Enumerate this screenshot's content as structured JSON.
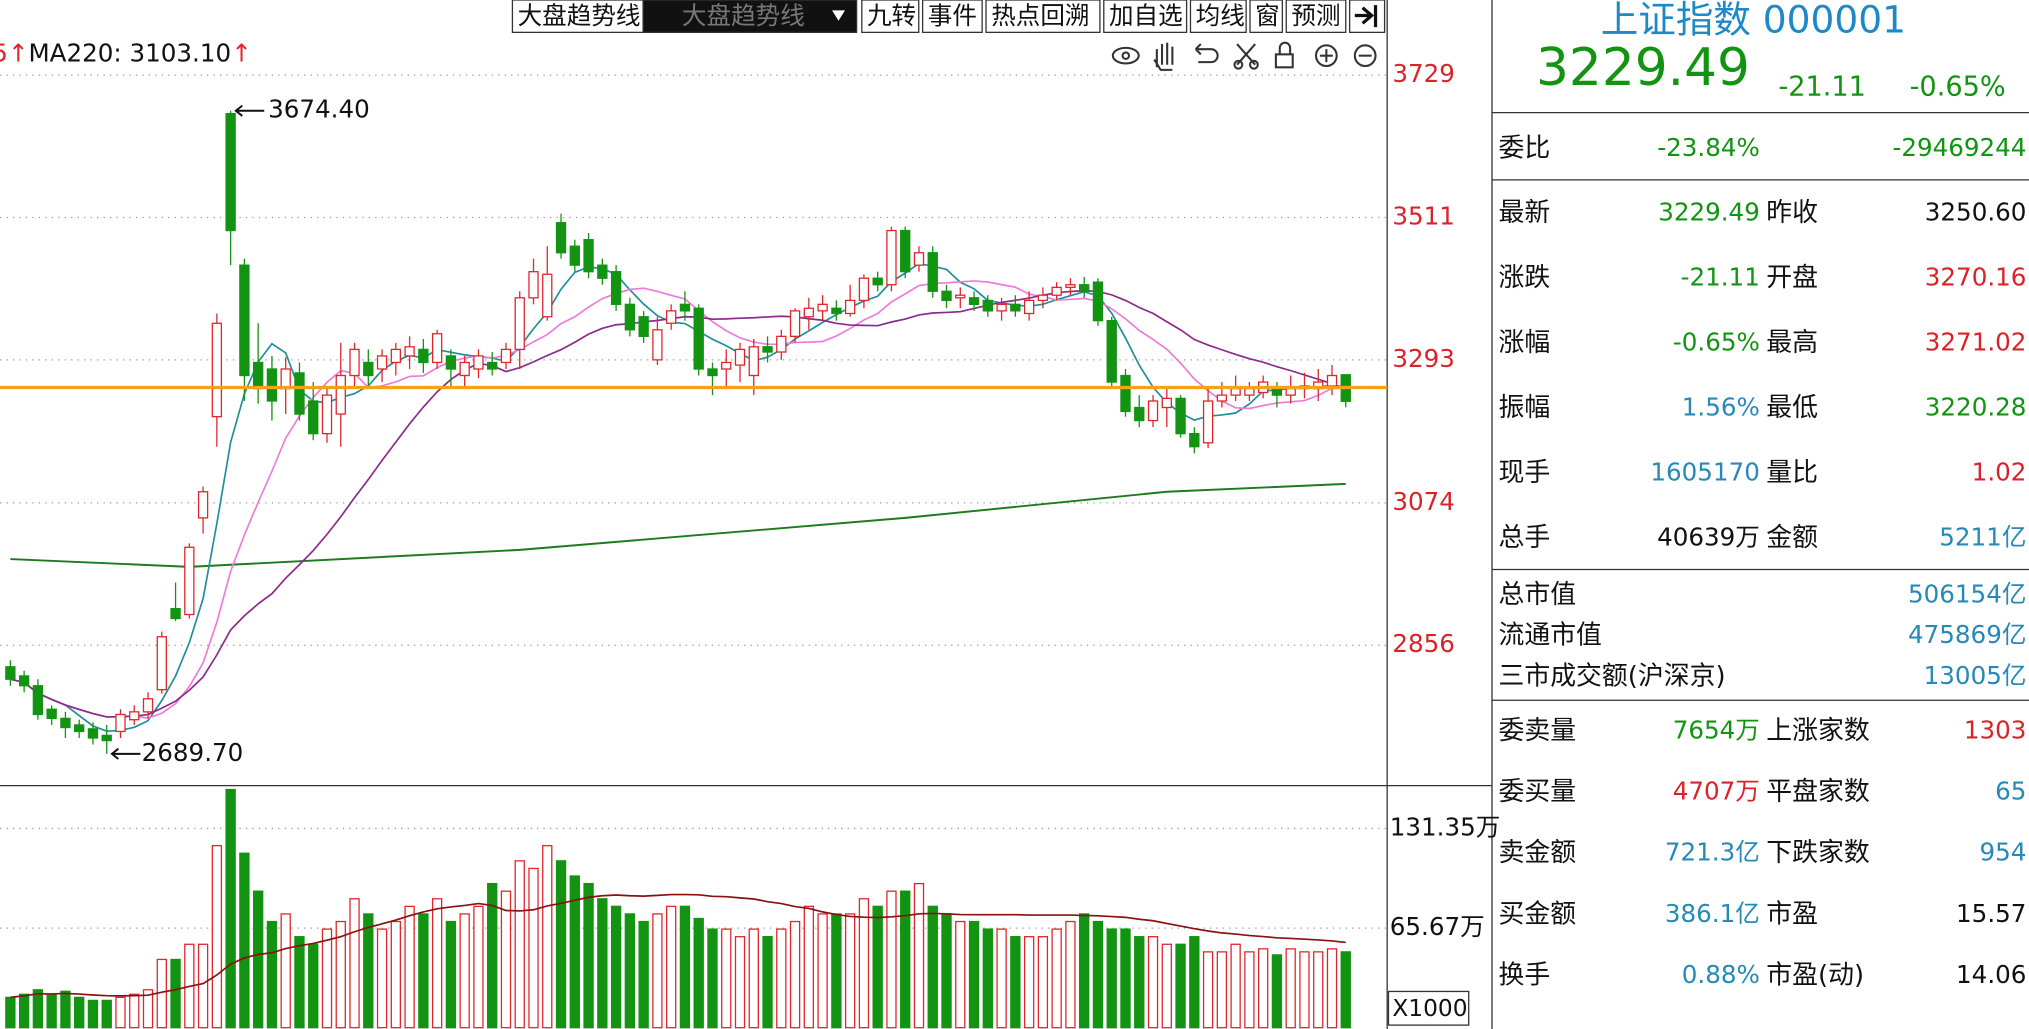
{
  "toolbar": {
    "items": [
      "大盘趋势线",
      "大盘趋势线",
      "九转",
      "事件",
      "热点回溯",
      "加自选",
      "均线",
      "窗",
      "预测"
    ]
  },
  "chart_data": {
    "type": "candlestick",
    "ma_partial": "5↑",
    "ma220_label": "MA220: 3103.10",
    "ma220_arrow": "↑",
    "ylim": [
      2641,
      3844
    ],
    "yticks": [
      3729,
      3511,
      3293,
      3074,
      2856
    ],
    "grid": true,
    "up_color": "#e0262b",
    "down_color": "#129412",
    "ref_color": "#f7a11a",
    "ma_colors": [
      "#1f8f9a",
      "#f07ad8",
      "#8a2a8a"
    ],
    "ma_periods": [
      5,
      10,
      20
    ],
    "ma220_color": "#1e7a1e",
    "vol_ma_color": "#8b1010",
    "vol_ma_period": 20,
    "prev_close": 3250.6,
    "open": [
      2823,
      2809,
      2794,
      2758,
      2744,
      2734,
      2728,
      2718,
      2724,
      2742,
      2754,
      2788,
      2912,
      2903,
      3051,
      3206,
      3670,
      3438,
      3289,
      3279,
      3249,
      3273,
      3230,
      3180,
      3210,
      3269,
      3289,
      3279,
      3289,
      3299,
      3309,
      3289,
      3299,
      3269,
      3279,
      3289,
      3289,
      3309,
      3388,
      3359,
      3503,
      3467,
      3477,
      3438,
      3428,
      3378,
      3359,
      3293,
      3349,
      3378,
      3372,
      3279,
      3279,
      3285,
      3269,
      3313,
      3305,
      3329,
      3359,
      3368,
      3372,
      3364,
      3384,
      3418,
      3408,
      3491,
      3438,
      3457,
      3398,
      3388,
      3388,
      3384,
      3368,
      3378,
      3364,
      3384,
      3392,
      3404,
      3408,
      3412,
      3353,
      3269,
      3220,
      3200,
      3220,
      3234,
      3180,
      3166,
      3230,
      3239,
      3239,
      3243,
      3249,
      3239,
      3249,
      3249,
      3253,
      3270.16
    ],
    "close": [
      2804,
      2794,
      2750,
      2744,
      2730,
      2724,
      2714,
      2710,
      2750,
      2754,
      2774,
      2869,
      2897,
      3006,
      3091,
      3349,
      3491,
      3269,
      3249,
      3230,
      3279,
      3210,
      3180,
      3239,
      3269,
      3309,
      3269,
      3299,
      3309,
      3313,
      3289,
      3333,
      3279,
      3289,
      3299,
      3279,
      3309,
      3388,
      3428,
      3424,
      3457,
      3438,
      3428,
      3418,
      3378,
      3339,
      3329,
      3339,
      3368,
      3368,
      3279,
      3269,
      3289,
      3309,
      3313,
      3305,
      3329,
      3368,
      3372,
      3378,
      3364,
      3384,
      3418,
      3408,
      3491,
      3428,
      3457,
      3398,
      3384,
      3392,
      3378,
      3368,
      3378,
      3368,
      3384,
      3392,
      3404,
      3408,
      3398,
      3353,
      3259,
      3214,
      3200,
      3230,
      3234,
      3180,
      3160,
      3230,
      3239,
      3249,
      3249,
      3259,
      3239,
      3249,
      3253,
      3259,
      3269,
      3229.49
    ],
    "high": [
      2833,
      2817,
      2804,
      2764,
      2754,
      2742,
      2738,
      2734,
      2758,
      2764,
      2784,
      2877,
      2952,
      3012,
      3099,
      3364,
      3674.4,
      3448,
      3349,
      3299,
      3297,
      3289,
      3259,
      3249,
      3319,
      3319,
      3309,
      3309,
      3319,
      3329,
      3325,
      3339,
      3309,
      3299,
      3309,
      3305,
      3319,
      3398,
      3448,
      3467,
      3517,
      3477,
      3487,
      3448,
      3438,
      3388,
      3368,
      3359,
      3378,
      3398,
      3378,
      3289,
      3309,
      3319,
      3325,
      3329,
      3339,
      3372,
      3388,
      3392,
      3384,
      3408,
      3424,
      3428,
      3497,
      3497,
      3467,
      3467,
      3408,
      3404,
      3398,
      3392,
      3388,
      3392,
      3398,
      3404,
      3412,
      3418,
      3420,
      3418,
      3359,
      3279,
      3239,
      3239,
      3249,
      3239,
      3190,
      3249,
      3259,
      3269,
      3259,
      3269,
      3259,
      3269,
      3273,
      3279,
      3285,
      3271.02
    ],
    "low": [
      2794,
      2784,
      2742,
      2734,
      2714,
      2714,
      2704,
      2689.7,
      2714,
      2734,
      2744,
      2782,
      2893,
      2897,
      3027,
      3160,
      3438,
      3230,
      3226,
      3200,
      3210,
      3200,
      3170,
      3166,
      3160,
      3249,
      3253,
      3259,
      3269,
      3279,
      3273,
      3279,
      3249,
      3253,
      3265,
      3269,
      3279,
      3279,
      3378,
      3353,
      3448,
      3428,
      3418,
      3408,
      3368,
      3329,
      3319,
      3285,
      3339,
      3353,
      3269,
      3239,
      3249,
      3259,
      3239,
      3289,
      3293,
      3319,
      3339,
      3353,
      3353,
      3359,
      3372,
      3398,
      3398,
      3418,
      3428,
      3388,
      3372,
      3372,
      3368,
      3359,
      3353,
      3359,
      3353,
      3372,
      3384,
      3392,
      3388,
      3345,
      3249,
      3206,
      3190,
      3190,
      3190,
      3174,
      3150,
      3158,
      3220,
      3230,
      3230,
      3234,
      3220,
      3226,
      3234,
      3230,
      3239,
      3220.28
    ],
    "high_label": "3674.40",
    "low_label": "2689.70",
    "ma220": {
      "index": [
        0,
        13,
        37,
        65,
        84,
        97
      ],
      "values": [
        2988,
        2976,
        3002,
        3051,
        3091,
        3103.1
      ]
    },
    "volume": [
      20,
      22,
      25,
      22,
      24,
      20,
      18,
      18,
      20,
      22,
      25,
      45,
      45,
      55,
      55,
      120,
      157,
      115,
      90,
      70,
      75,
      60,
      55,
      65,
      70,
      85,
      75,
      65,
      70,
      80,
      75,
      85,
      70,
      75,
      80,
      95,
      90,
      110,
      105,
      120,
      110,
      100,
      95,
      85,
      80,
      75,
      70,
      75,
      80,
      80,
      72,
      65,
      65,
      60,
      65,
      60,
      65,
      70,
      80,
      75,
      75,
      75,
      85,
      80,
      90,
      90,
      95,
      80,
      75,
      70,
      70,
      65,
      65,
      60,
      60,
      60,
      65,
      70,
      75,
      70,
      65,
      65,
      60,
      60,
      55,
      55,
      60,
      50,
      50,
      55,
      50,
      52,
      48,
      52,
      50,
      50,
      52,
      50
    ],
    "vol_ylim": [
      0,
      157
    ],
    "vol_yticks": [
      {
        "value": 131.35,
        "label": "131.35万"
      },
      {
        "value": 65.67,
        "label": "65.67万"
      }
    ],
    "vol_unit": "X1000"
  },
  "panel": {
    "title": "上证指数 000001",
    "price": "3229.49",
    "change": "-21.11",
    "pct": "-0.65%",
    "weibi": {
      "label": "委比",
      "value": "-23.84%",
      "amount": "-29469244",
      "color": "#129412"
    },
    "grid1": [
      [
        "最新",
        {
          "text": "3229.49",
          "color": "#129412"
        },
        "昨收",
        {
          "text": "3250.60",
          "color": "#111111"
        }
      ],
      [
        "涨跌",
        {
          "text": "-21.11",
          "color": "#129412"
        },
        "开盘",
        {
          "text": "3270.16",
          "color": "#d9232a"
        }
      ],
      [
        "涨幅",
        {
          "text": "-0.65%",
          "color": "#129412"
        },
        "最高",
        {
          "text": "3271.02",
          "color": "#d9232a"
        }
      ],
      [
        "振幅",
        {
          "text": "1.56%",
          "color": "#2689b8"
        },
        "最低",
        {
          "text": "3220.28",
          "color": "#129412"
        }
      ],
      [
        "现手",
        {
          "text": "1605170",
          "color": "#2689b8"
        },
        "量比",
        {
          "text": "1.02",
          "color": "#d9232a"
        }
      ],
      [
        "总手",
        {
          "text": "40639万",
          "color": "#111111"
        },
        "金额",
        {
          "text": "5211亿",
          "color": "#2689b8"
        }
      ]
    ],
    "grid2": [
      [
        "总市值",
        {
          "text": "506154亿",
          "color": "#2689b8"
        }
      ],
      [
        "流通市值",
        {
          "text": "475869亿",
          "color": "#2689b8"
        }
      ],
      [
        "三市成交额(沪深京)",
        {
          "text": "13005亿",
          "color": "#2689b8"
        }
      ]
    ],
    "grid3": [
      [
        "委卖量",
        {
          "text": "7654万",
          "color": "#129412"
        },
        "上涨家数",
        {
          "text": "1303",
          "color": "#d9232a"
        }
      ],
      [
        "委买量",
        {
          "text": "4707万",
          "color": "#d9232a"
        },
        "平盘家数",
        {
          "text": "65",
          "color": "#2689b8"
        }
      ],
      [
        "卖金额",
        {
          "text": "721.3亿",
          "color": "#2689b8"
        },
        "下跌家数",
        {
          "text": "954",
          "color": "#2689b8"
        }
      ],
      [
        "买金额",
        {
          "text": "386.1亿",
          "color": "#2689b8"
        },
        "市盈",
        {
          "text": "15.57",
          "color": "#111111"
        }
      ],
      [
        "换手",
        {
          "text": "0.88%",
          "color": "#2689b8"
        },
        "市盈(动)",
        {
          "text": "14.06",
          "color": "#111111"
        }
      ]
    ]
  }
}
